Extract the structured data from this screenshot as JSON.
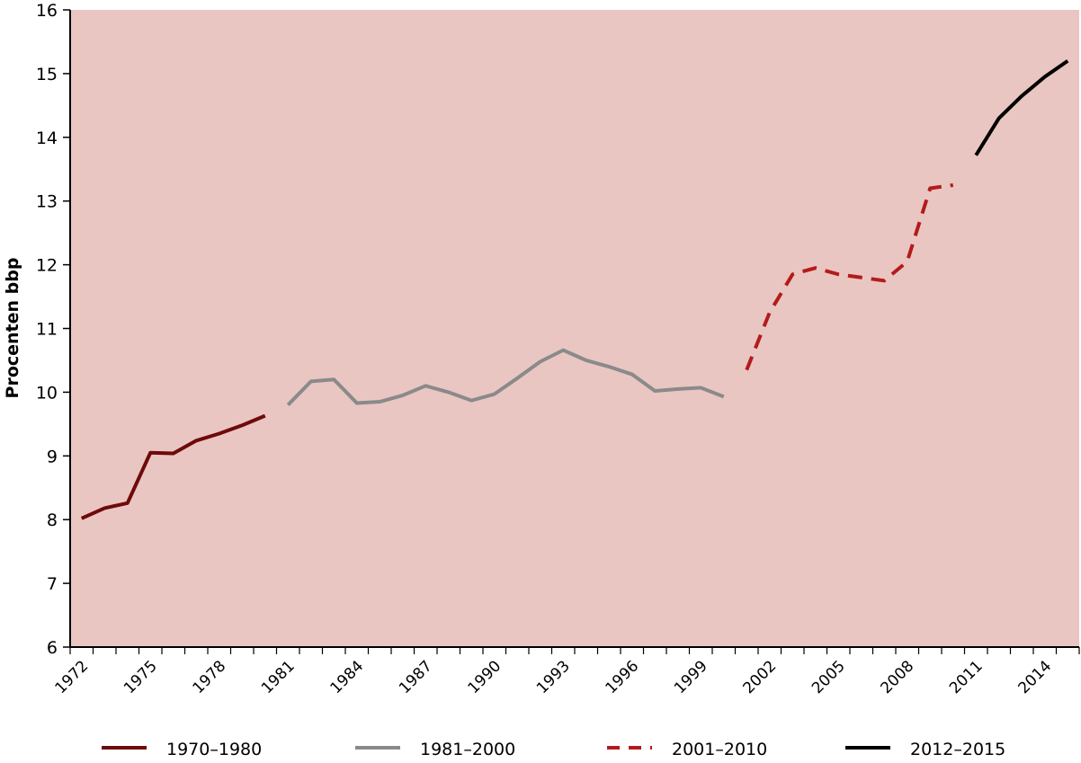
{
  "chart_data": {
    "type": "line",
    "y_label": "Procenten bbp",
    "categories": [
      "1972",
      null,
      null,
      "1975",
      null,
      null,
      "1978",
      null,
      null,
      "1981",
      null,
      null,
      "1984",
      null,
      null,
      "1987",
      null,
      null,
      "1990",
      null,
      null,
      "1993",
      null,
      null,
      "1996",
      null,
      null,
      "1999",
      null,
      null,
      "2002",
      null,
      null,
      "2005",
      null,
      null,
      "2008",
      null,
      null,
      "2011",
      null,
      null,
      "2014",
      null
    ],
    "series": [
      {
        "name": "1970–1980",
        "color": "#6e0a0a",
        "dashed": false,
        "values": [
          8.02,
          8.18,
          8.26,
          9.05,
          9.04,
          9.24,
          9.35,
          9.48,
          9.63,
          null,
          null,
          null,
          null,
          null,
          null,
          null,
          null,
          null,
          null,
          null,
          null,
          null,
          null,
          null,
          null,
          null,
          null,
          null,
          null,
          null,
          null,
          null,
          null,
          null,
          null,
          null,
          null,
          null,
          null,
          null,
          null,
          null,
          null,
          null
        ]
      },
      {
        "name": "1981–2000",
        "color": "#8a8a8a",
        "dashed": false,
        "values": [
          null,
          null,
          null,
          null,
          null,
          null,
          null,
          null,
          null,
          9.8,
          10.17,
          10.2,
          9.83,
          9.85,
          9.95,
          10.1,
          10.0,
          9.87,
          9.97,
          10.22,
          10.48,
          10.66,
          10.5,
          10.4,
          10.28,
          10.02,
          10.05,
          10.07,
          9.93,
          null,
          null,
          null,
          null,
          null,
          null,
          null,
          null,
          null,
          null,
          null,
          null,
          null,
          null,
          null
        ]
      },
      {
        "name": "2001–2010",
        "color": "#b31b1b",
        "dashed": true,
        "values": [
          null,
          null,
          null,
          null,
          null,
          null,
          null,
          null,
          null,
          null,
          null,
          null,
          null,
          null,
          null,
          null,
          null,
          null,
          null,
          null,
          null,
          null,
          null,
          null,
          null,
          null,
          null,
          null,
          null,
          10.35,
          11.25,
          11.85,
          11.95,
          11.85,
          11.8,
          11.75,
          12.05,
          13.2,
          13.25,
          null,
          null,
          null,
          null,
          null
        ]
      },
      {
        "name": "2012–2015",
        "color": "#000000",
        "dashed": false,
        "values": [
          null,
          null,
          null,
          null,
          null,
          null,
          null,
          null,
          null,
          null,
          null,
          null,
          null,
          null,
          null,
          null,
          null,
          null,
          null,
          null,
          null,
          null,
          null,
          null,
          null,
          null,
          null,
          null,
          null,
          null,
          null,
          null,
          null,
          null,
          null,
          null,
          null,
          null,
          null,
          13.72,
          14.3,
          14.65,
          14.95,
          15.2
        ]
      }
    ],
    "ylim": [
      6,
      16
    ],
    "yticks": [
      6,
      7,
      8,
      9,
      10,
      11,
      12,
      13,
      14,
      15,
      16
    ],
    "background": "#e9c6c2"
  }
}
